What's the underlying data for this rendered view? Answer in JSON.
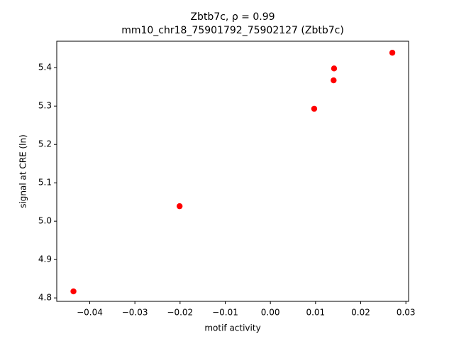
{
  "chart_data": {
    "type": "scatter",
    "title": "Zbtb7c, ρ = 0.99",
    "subtitle": "mm10_chr18_75901792_75902127 (Zbtb7c)",
    "x_label": "motif activity",
    "y_label": "signal at CRE (ln)",
    "series": [
      {
        "color": "#ff0000",
        "x": [
          -0.0436,
          -0.0201,
          0.0097,
          0.014,
          0.0141,
          0.027
        ],
        "values": [
          4.817,
          5.039,
          5.293,
          5.367,
          5.398,
          5.439
        ]
      }
    ],
    "xlim": [
      -0.0473,
      0.0306
    ],
    "ylim": [
      4.791,
      5.469
    ],
    "xticks": [
      {
        "value": -0.04,
        "label": "−0.04"
      },
      {
        "value": -0.03,
        "label": "−0.03"
      },
      {
        "value": -0.02,
        "label": "−0.02"
      },
      {
        "value": -0.01,
        "label": "−0.01"
      },
      {
        "value": 0,
        "label": "0.00"
      },
      0.01,
      0.02,
      0.03
    ],
    "yticks": [
      4.8,
      4.9,
      {
        "value": 5,
        "label": "5.0"
      },
      5.1,
      5.2,
      5.3,
      5.4
    ]
  }
}
